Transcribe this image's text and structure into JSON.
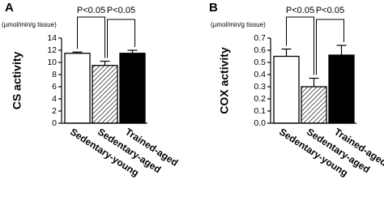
{
  "chart_data": [
    {
      "type": "bar",
      "panel": "A",
      "unit": "(µmol/min/g tissue)",
      "ylabel": "CS activity",
      "categories": [
        "Sedentary-young",
        "Sedentary-aged",
        "Trained-aged"
      ],
      "values": [
        11.5,
        9.5,
        11.5
      ],
      "errors": [
        0.2,
        0.7,
        0.5
      ],
      "colors": [
        "#ffffff",
        "#ffffff",
        "#000000"
      ],
      "hatch": [
        false,
        true,
        false
      ],
      "annotations": [
        "P<0.05",
        "P<0.05"
      ],
      "ylim": [
        0,
        14
      ],
      "yticks": [
        0,
        2,
        4,
        6,
        8,
        10,
        12,
        14
      ]
    },
    {
      "type": "bar",
      "panel": "B",
      "unit": "(µmol/min/g tissue)",
      "ylabel": "COX activity",
      "categories": [
        "Sedentary-young",
        "Sedentary-aged",
        "Trained-aged"
      ],
      "values": [
        0.55,
        0.3,
        0.56
      ],
      "errors": [
        0.06,
        0.07,
        0.08
      ],
      "colors": [
        "#ffffff",
        "#ffffff",
        "#000000"
      ],
      "hatch": [
        false,
        true,
        false
      ],
      "annotations": [
        "P<0.05",
        "P<0.05"
      ],
      "ylim": [
        0,
        0.7
      ],
      "yticks": [
        {
          "value": 0,
          "label": "0.0"
        },
        0.1,
        0.2,
        0.3,
        0.4,
        0.5,
        0.6,
        0.7
      ]
    }
  ]
}
